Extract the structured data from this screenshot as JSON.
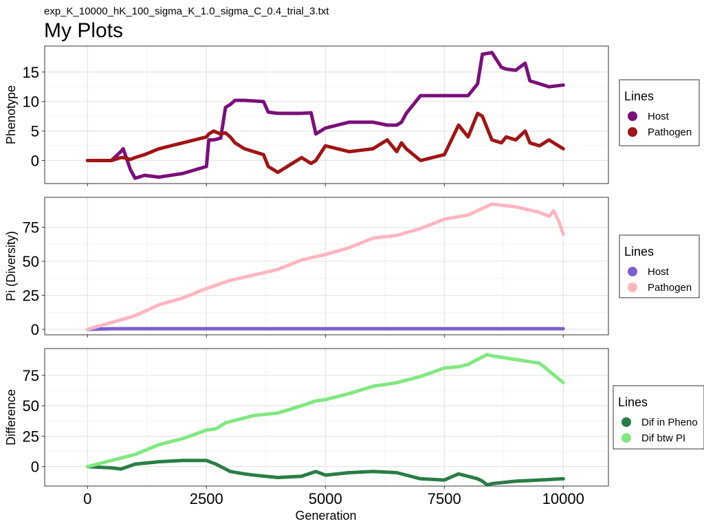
{
  "header": {
    "subtitle": "exp_K_10000_hK_100_sigma_K_1.0_sigma_C_0.4_trial_3.txt",
    "title": "My Plots"
  },
  "chart_data": [
    {
      "type": "line",
      "ylabel": "Phenotype",
      "xlim": [
        -900,
        10950
      ],
      "ylim": [
        -3.9,
        19.4
      ],
      "yticks": [
        0,
        5,
        10,
        15
      ],
      "xticks": [
        0,
        2500,
        5000,
        7500,
        10000
      ],
      "grid": true,
      "legend": {
        "title": "Lines",
        "position": "right"
      },
      "x": [
        0,
        500,
        700,
        750,
        900,
        1000,
        1200,
        1500,
        2000,
        2500,
        2550,
        2650,
        2800,
        2900,
        3000,
        3100,
        3300,
        3700,
        3800,
        4000,
        4500,
        4700,
        4800,
        5000,
        5500,
        6000,
        6300,
        6500,
        6600,
        6700,
        7000,
        7500,
        7800,
        8000,
        8200,
        8300,
        8500,
        8700,
        8800,
        9000,
        9200,
        9300,
        9500,
        9700,
        10000
      ],
      "series": [
        {
          "name": "Host",
          "color": "#7b0f7b",
          "values": [
            0,
            0,
            1.5,
            2,
            -1.5,
            -3,
            -2.5,
            -2.8,
            -2.2,
            -1,
            3.5,
            3.5,
            3.8,
            9,
            9.5,
            10.2,
            10.2,
            10,
            8.2,
            8,
            8,
            8.1,
            4.5,
            5.5,
            6.5,
            6.5,
            6,
            6,
            6.5,
            8,
            11,
            11,
            11,
            11,
            13,
            18,
            18.3,
            15.8,
            15.5,
            15.3,
            16.5,
            13.5,
            13,
            12.5,
            12.8
          ]
        },
        {
          "name": "Pathogen",
          "color": "#a01515",
          "values": [
            0,
            0,
            0.5,
            0.5,
            0.2,
            0.5,
            1,
            2,
            3,
            4,
            4.5,
            5,
            4.5,
            4.7,
            4,
            3,
            2,
            1,
            -1,
            -2,
            0.5,
            -0.5,
            0,
            2.5,
            1.5,
            2,
            3.5,
            1.5,
            3,
            2,
            0,
            1,
            6,
            4,
            8,
            7.5,
            3.5,
            3,
            4,
            3.5,
            5,
            3,
            2.5,
            3.5,
            2
          ]
        }
      ]
    },
    {
      "type": "line",
      "ylabel": "Pi (Diversity)",
      "xlim": [
        -900,
        10950
      ],
      "ylim": [
        -4,
        97
      ],
      "yticks": [
        0,
        25,
        50,
        75
      ],
      "xticks": [
        0,
        2500,
        5000,
        7500,
        10000
      ],
      "grid": true,
      "legend": {
        "title": "Lines",
        "position": "right"
      },
      "x": [
        0,
        500,
        1000,
        1500,
        2000,
        2500,
        3000,
        3500,
        4000,
        4500,
        5000,
        5500,
        6000,
        6500,
        7000,
        7500,
        8000,
        8500,
        9000,
        9500,
        9700,
        9800,
        9900,
        10000
      ],
      "series": [
        {
          "name": "Host",
          "color": "#7a5fd0",
          "values": [
            0,
            0.5,
            0.5,
            0.5,
            0.5,
            0.5,
            0.5,
            0.5,
            0.5,
            0.5,
            0.5,
            0.5,
            0.5,
            0.5,
            0.5,
            0.5,
            0.5,
            0.5,
            0.5,
            0.5,
            0.5,
            0.5,
            0.5,
            0.5
          ]
        },
        {
          "name": "Pathogen",
          "color": "#ffb6c1",
          "values": [
            0,
            5,
            10,
            18,
            23,
            30,
            36,
            40,
            44,
            51,
            55,
            60,
            67,
            69,
            74,
            81,
            84,
            92,
            90,
            86,
            83,
            87,
            80,
            70
          ]
        }
      ]
    },
    {
      "type": "line",
      "ylabel": "Difference",
      "xlabel": "Generation",
      "xlim": [
        -900,
        10950
      ],
      "ylim": [
        -16,
        97
      ],
      "yticks": [
        0,
        25,
        50,
        75
      ],
      "xticks": [
        0,
        2500,
        5000,
        7500,
        10000
      ],
      "grid": true,
      "legend": {
        "title": "Lines",
        "position": "right"
      },
      "x": [
        0,
        500,
        700,
        1000,
        1500,
        2000,
        2500,
        2700,
        2900,
        3000,
        3300,
        3500,
        4000,
        4500,
        4800,
        5000,
        5500,
        6000,
        6500,
        7000,
        7500,
        7800,
        8000,
        8200,
        8300,
        8400,
        8500,
        9000,
        9500,
        10000
      ],
      "series": [
        {
          "name": "Dif in Pheno",
          "color": "#2a7d46",
          "values": [
            0,
            -1,
            -2,
            2,
            4,
            5,
            5,
            2,
            -2,
            -4,
            -6,
            -7,
            -9,
            -8,
            -4,
            -7,
            -5,
            -4,
            -5,
            -10,
            -11,
            -6,
            -8,
            -10,
            -12,
            -15,
            -14,
            -12,
            -11,
            -10
          ]
        },
        {
          "name": "Dif btw PI",
          "color": "#80e880",
          "values": [
            0,
            5,
            7,
            10,
            18,
            23,
            30,
            31,
            36,
            37,
            40,
            42,
            44,
            50,
            54,
            55,
            60,
            66,
            69,
            74,
            81,
            82,
            84,
            88,
            90,
            92,
            91,
            88,
            85,
            69
          ]
        }
      ]
    }
  ]
}
